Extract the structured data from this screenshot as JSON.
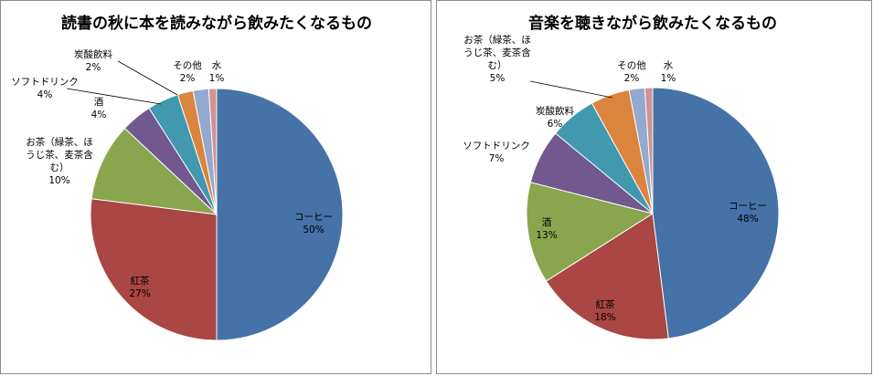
{
  "chart_data": [
    {
      "type": "pie",
      "title": "読書の秋に本を読みながら飲みたくなるもの",
      "slices": [
        {
          "label": [
            "コーヒー"
          ],
          "value": 50,
          "pct": "50%",
          "color": "#4572A7"
        },
        {
          "label": [
            "紅茶"
          ],
          "value": 27,
          "pct": "27%",
          "color": "#AA4643"
        },
        {
          "label": [
            "お茶（緑茶、ほ",
            "うじ茶、麦茶含",
            "む）"
          ],
          "value": 10,
          "pct": "10%",
          "color": "#89A54E"
        },
        {
          "label": [
            "酒"
          ],
          "value": 4,
          "pct": "4%",
          "color": "#71588F"
        },
        {
          "label": [
            "ソフトドリンク"
          ],
          "value": 4,
          "pct": "4%",
          "color": "#4198AF"
        },
        {
          "label": [
            "炭酸飲料"
          ],
          "value": 2,
          "pct": "2%",
          "color": "#DB843D"
        },
        {
          "label": [
            "その他"
          ],
          "value": 2,
          "pct": "2%",
          "color": "#93A9CF"
        },
        {
          "label": [
            "水"
          ],
          "value": 1,
          "pct": "1%",
          "color": "#D19392"
        }
      ]
    },
    {
      "type": "pie",
      "title": "音楽を聴きながら飲みたくなるもの",
      "slices": [
        {
          "label": [
            "コーヒー"
          ],
          "value": 48,
          "pct": "48%",
          "color": "#4572A7"
        },
        {
          "label": [
            "紅茶"
          ],
          "value": 18,
          "pct": "18%",
          "color": "#AA4643"
        },
        {
          "label": [
            "酒"
          ],
          "value": 13,
          "pct": "13%",
          "color": "#89A54E"
        },
        {
          "label": [
            "ソフトドリンク"
          ],
          "value": 7,
          "pct": "7%",
          "color": "#71588F"
        },
        {
          "label": [
            "炭酸飲料"
          ],
          "value": 6,
          "pct": "6%",
          "color": "#4198AF"
        },
        {
          "label": [
            "お茶（緑茶、ほ",
            "うじ茶、麦茶含",
            "む）"
          ],
          "value": 5,
          "pct": "5%",
          "color": "#DB843D"
        },
        {
          "label": [
            "その他"
          ],
          "value": 2,
          "pct": "2%",
          "color": "#93A9CF"
        },
        {
          "label": [
            "水"
          ],
          "value": 1,
          "pct": "1%",
          "color": "#D19392"
        }
      ]
    }
  ]
}
